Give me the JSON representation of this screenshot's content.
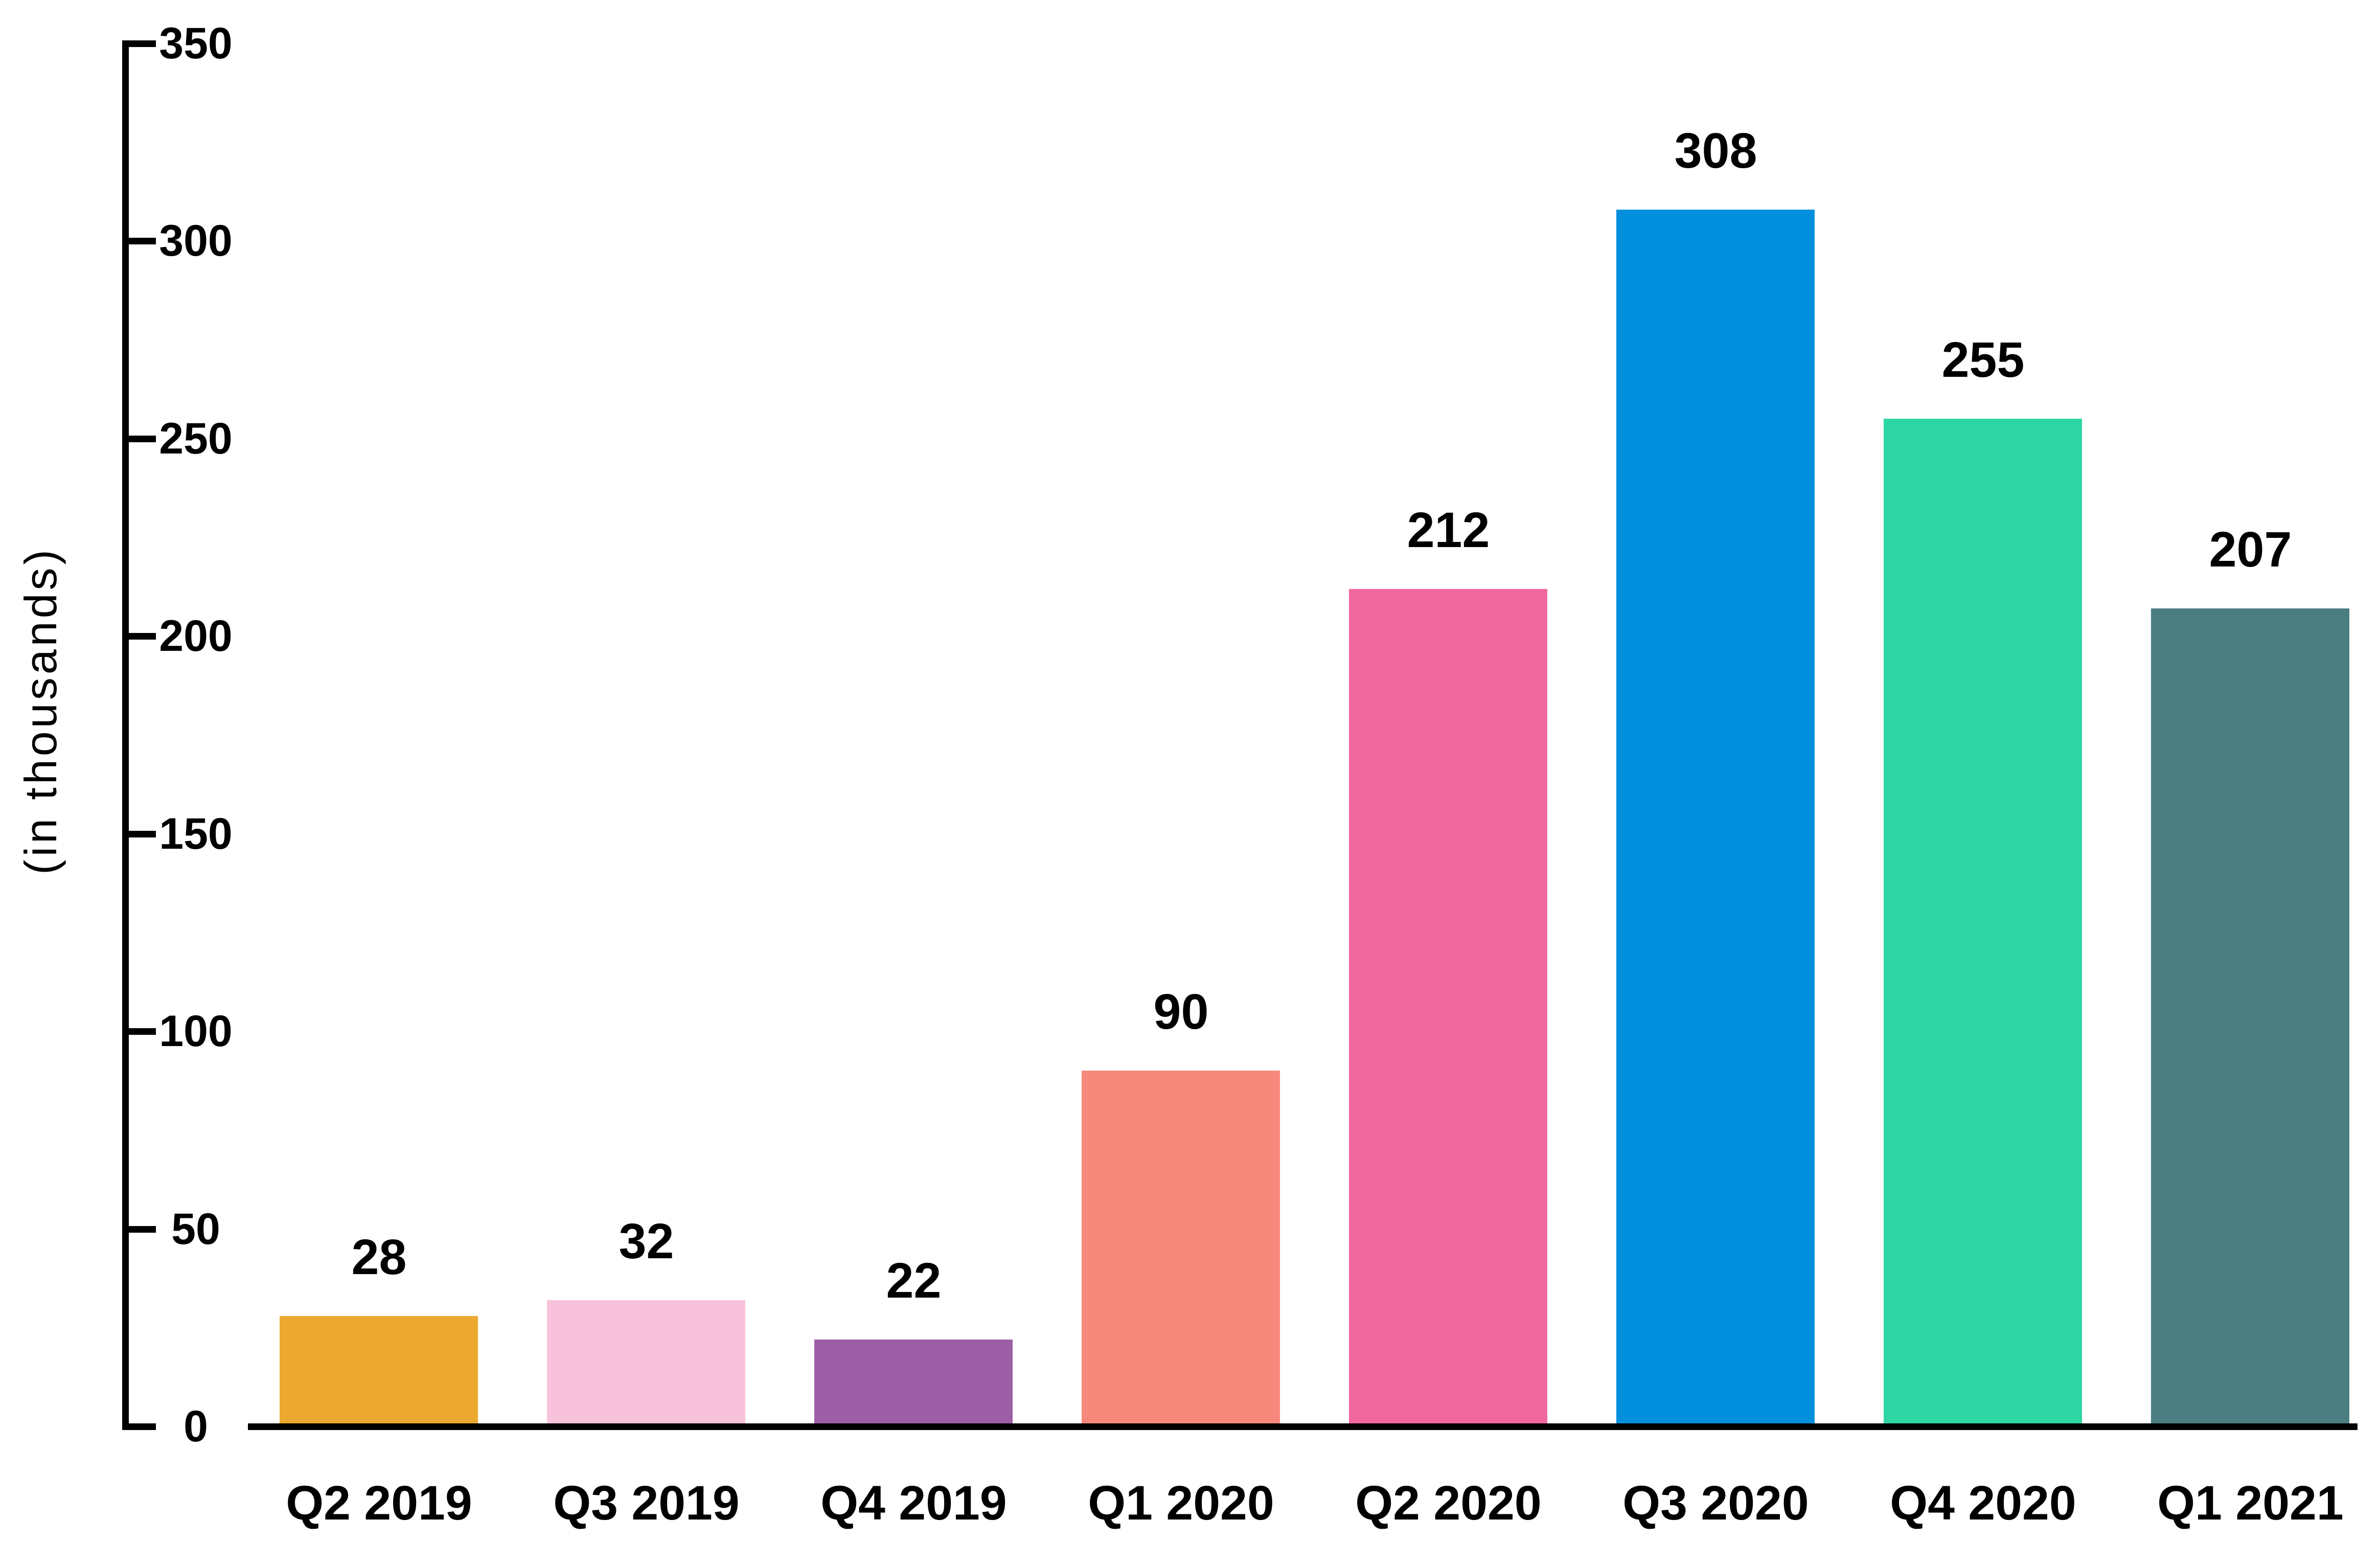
{
  "chart_data": {
    "type": "bar",
    "title": "",
    "xlabel": "",
    "ylabel": "(in thousands)",
    "categories": [
      "Q2 2019",
      "Q3 2019",
      "Q4 2019",
      "Q1 2020",
      "Q2 2020",
      "Q3 2020",
      "Q4 2020",
      "Q1 2021"
    ],
    "values": [
      28,
      32,
      22,
      90,
      212,
      308,
      255,
      207
    ],
    "data_labels": [
      "28",
      "32",
      "22",
      "90",
      "212",
      "308",
      "255",
      "207"
    ],
    "bar_colors": [
      "#EBA92F",
      "#F8C3DA",
      "#9C5FA6",
      "#F6897C",
      "#F0689E",
      "#0290DE",
      "#2ED6A4",
      "#4B7E80"
    ],
    "ylim": [
      0,
      350
    ],
    "yticks": [
      0,
      50,
      100,
      150,
      200,
      250,
      300,
      350
    ],
    "grid": false,
    "legend_position": "none",
    "axis_color": "#000000",
    "text_color": "#000000",
    "background_color": "#FFFFFF"
  }
}
